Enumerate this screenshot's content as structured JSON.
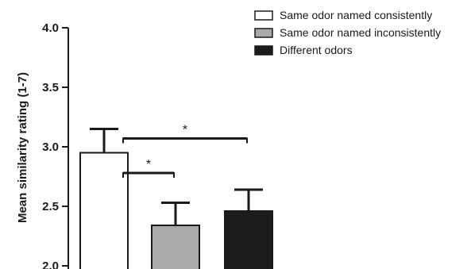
{
  "chart_data": {
    "type": "bar",
    "ylabel": "Mean similarity rating (1-7)",
    "ylim": [
      2.0,
      4.0
    ],
    "yticks": [
      2.0,
      2.5,
      3.0,
      3.5,
      4.0
    ],
    "ytick_labels": [
      "2.0",
      "2.5",
      "3.0",
      "3.5",
      "4.0"
    ],
    "grid": false,
    "legend_position": "top-right",
    "series": [
      {
        "name": "Same odor named consistently",
        "value": 2.95,
        "error": 0.2,
        "color": "#ffffff"
      },
      {
        "name": "Same odor named inconsistently",
        "value": 2.34,
        "error": 0.19,
        "color": "#a9a9a9"
      },
      {
        "name": "Different odors",
        "value": 2.46,
        "error": 0.18,
        "color": "#1c1c1c"
      }
    ],
    "significance": [
      {
        "from": 0,
        "to": 1,
        "label": "*",
        "y": 2.78
      },
      {
        "from": 0,
        "to": 2,
        "label": "*",
        "y": 3.07
      }
    ]
  }
}
